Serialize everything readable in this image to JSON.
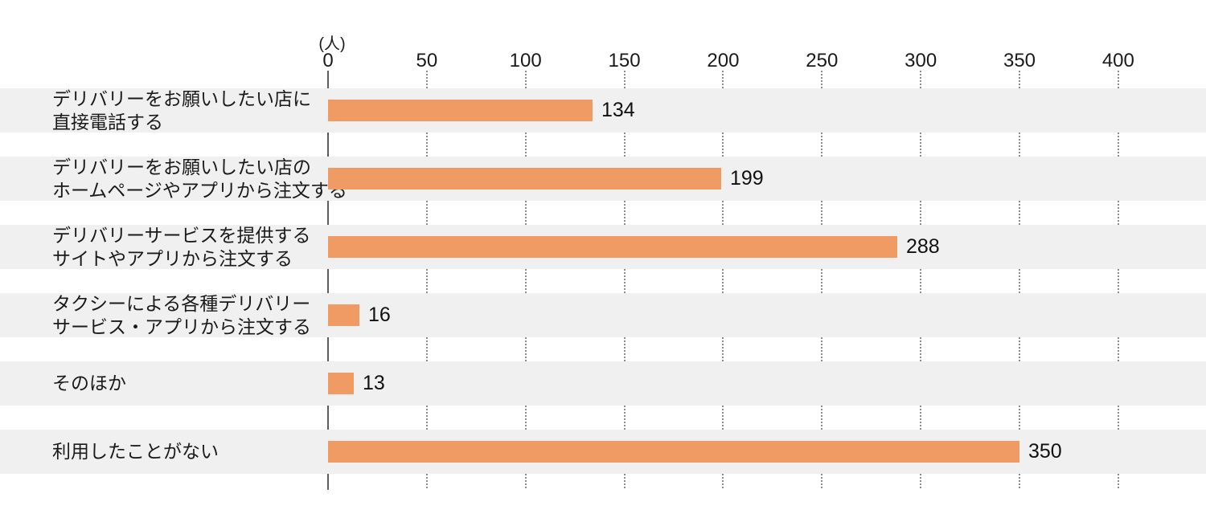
{
  "chart_data": {
    "type": "bar",
    "orientation": "horizontal",
    "title": "",
    "unit_label": "(人)",
    "xlabel": "",
    "ylabel": "",
    "xlim": [
      0,
      400
    ],
    "x_ticks": [
      0,
      50,
      100,
      150,
      200,
      250,
      300,
      350,
      400
    ],
    "grid": "dotted-vertical",
    "categories": [
      "デリバリーをお願いしたい店に\n直接電話する",
      "デリバリーをお願いしたい店の\nホームページやアプリから注文する",
      "デリバリーサービスを提供する\nサイトやアプリから注文する",
      "タクシーによる各種デリバリー\nサービス・アプリから注文する",
      "そのほか",
      "利用したことがない"
    ],
    "values": [
      134,
      199,
      288,
      16,
      13,
      350
    ],
    "bar_color": "#f09a64",
    "row_band_color": "#f0f0f0",
    "axis_line_color": "#5e5e5e",
    "text_color": "#1a1a1a"
  }
}
